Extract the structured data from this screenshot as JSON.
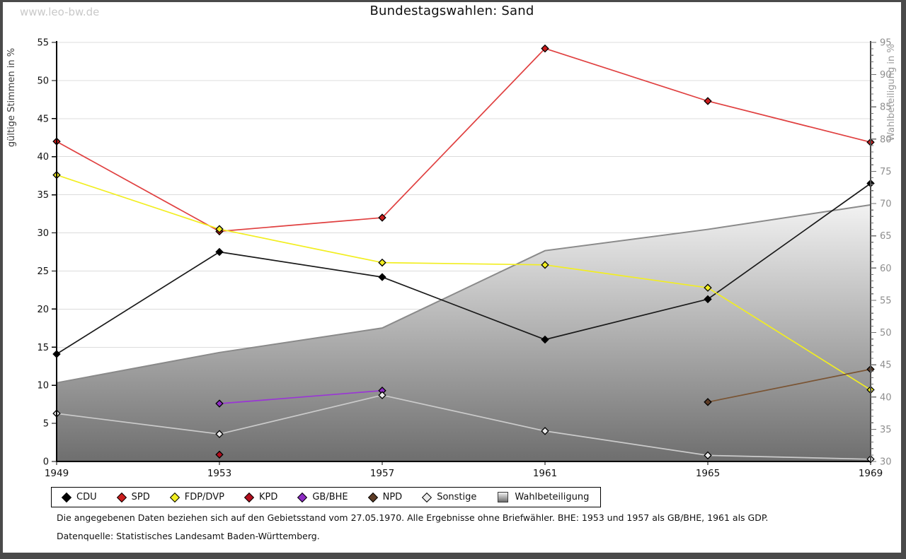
{
  "watermark": "www.leo-bw.de",
  "title": "Bundestagswahlen: Sand",
  "footnotes": {
    "line1": "Die angegebenen Daten beziehen sich auf den Gebietsstand vom 27.05.1970. Alle Ergebnisse ohne Briefwähler. BHE: 1953 und 1957 als GB/BHE, 1961 als GDP.",
    "line2": "Datenquelle: Statistisches Landesamt Baden-Württemberg."
  },
  "chart_data": {
    "type": "line",
    "title": "Bundestagswahlen: Sand",
    "x": [
      1949,
      1953,
      1957,
      1961,
      1965,
      1969
    ],
    "left_axis": {
      "label": "gültige Stimmen in %",
      "min": 0,
      "max": 55,
      "step": 5
    },
    "right_axis": {
      "label": "Wahlbeteiligung in %",
      "min": 30,
      "max": 95,
      "step": 5,
      "minor_step": 1
    },
    "grid": "horizontal",
    "legend_position": "bottom",
    "area_gradient": {
      "top": "#f2f2f2",
      "bottom": "#6e6e6e",
      "edge": "#8a8a8a"
    },
    "series": [
      {
        "name": "CDU",
        "axis": "left",
        "color": "#1a1a1a",
        "marker": "#000000",
        "values": [
          14.1,
          27.5,
          24.2,
          16.0,
          21.3,
          36.5
        ]
      },
      {
        "name": "SPD",
        "axis": "left",
        "color": "#e04040",
        "marker": "#cc1d1d",
        "values": [
          42.0,
          30.2,
          32.0,
          54.2,
          47.3,
          41.9
        ]
      },
      {
        "name": "FDP/DVP",
        "axis": "left",
        "color": "#f2ee20",
        "marker": "#f2ee20",
        "values": [
          37.6,
          30.5,
          26.1,
          25.8,
          22.8,
          9.4
        ]
      },
      {
        "name": "KPD",
        "axis": "left",
        "color": "#b30e1d",
        "marker": "#b30e1d",
        "values": [
          null,
          0.9,
          null,
          null,
          null,
          null
        ]
      },
      {
        "name": "GB/BHE",
        "axis": "left",
        "color": "#9a35d6",
        "marker": "#8d2bc4",
        "values": [
          null,
          7.6,
          9.3,
          null,
          null,
          null
        ]
      },
      {
        "name": "NPD",
        "axis": "left",
        "color": "#7a5433",
        "marker": "#5e3c26",
        "values": [
          null,
          null,
          null,
          null,
          7.8,
          12.1
        ]
      },
      {
        "name": "Sonstige",
        "axis": "left",
        "color": "#cbcbcb",
        "marker": "#ececec",
        "values": [
          6.3,
          3.6,
          8.7,
          4.0,
          0.8,
          0.3
        ]
      },
      {
        "name": "Wahlbeteiligung",
        "axis": "right",
        "type": "area",
        "values": [
          42.2,
          46.9,
          50.7,
          62.7,
          66.0,
          69.8
        ]
      }
    ]
  }
}
